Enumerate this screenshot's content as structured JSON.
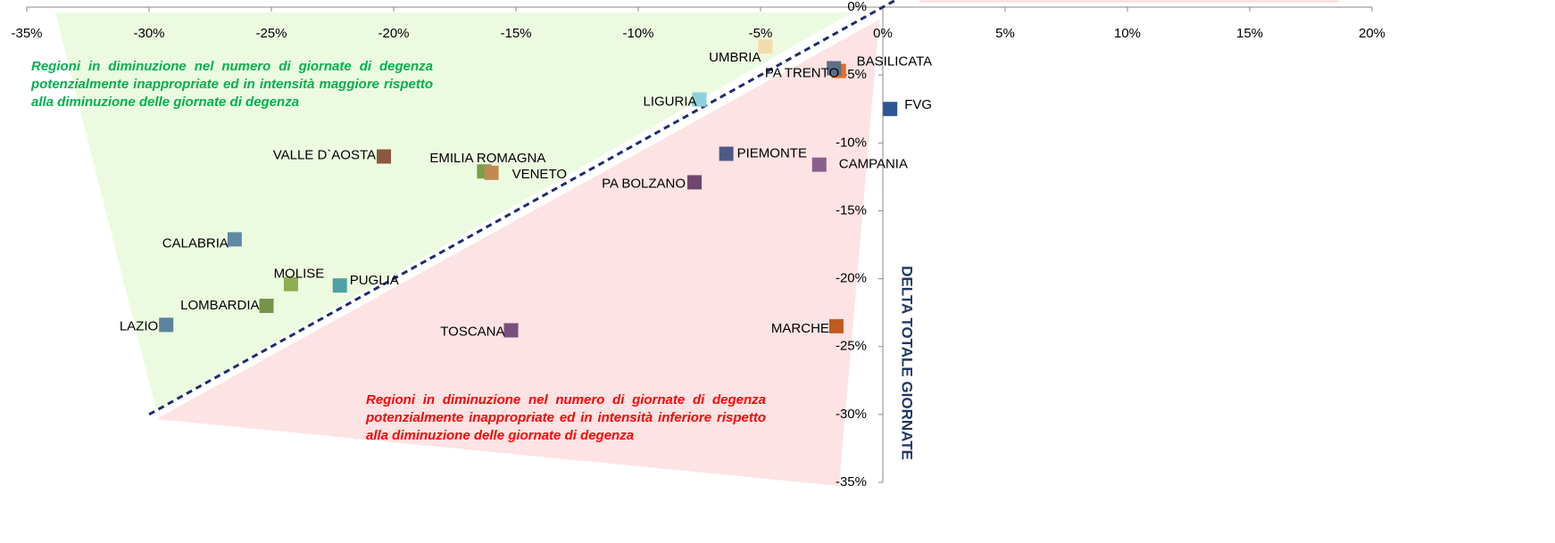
{
  "chart_data": {
    "type": "scatter",
    "ylabel": "DELTA TOTALE GIORNATE",
    "annotations": [
      "Regioni in diminuzione nel numero di giornate di degenza potenzialmente inappropriate ed in intensità maggiore rispetto alla diminuzione delle giornate di degenza",
      "Regioni in diminuzione nel numero di giornate di degenza potenzialmente inappropriate ed in intensità inferiore rispetto alla diminuzione delle giornate di degenza"
    ],
    "xlim": [
      -35,
      20
    ],
    "ylim": [
      -35,
      0
    ],
    "xticks": [
      {
        "value": -35,
        "label": "-35%"
      },
      {
        "value": -30,
        "label": "-30%"
      },
      {
        "value": -25,
        "label": "-25%"
      },
      {
        "value": -20,
        "label": "-20%"
      },
      {
        "value": -15,
        "label": "-15%"
      },
      {
        "value": -10,
        "label": "-10%"
      },
      {
        "value": -5,
        "label": "-5%"
      },
      {
        "value": 0,
        "label": "0%"
      },
      {
        "value": 5,
        "label": "5%"
      },
      {
        "value": 10,
        "label": "10%"
      },
      {
        "value": 15,
        "label": "15%"
      },
      {
        "value": 20,
        "label": "20%"
      }
    ],
    "yticks": [
      {
        "value": 0,
        "label": "0%"
      },
      {
        "value": -5,
        "label": "-5%"
      },
      {
        "value": -10,
        "label": "-10%"
      },
      {
        "value": -15,
        "label": "-15%"
      },
      {
        "value": -20,
        "label": "-20%"
      },
      {
        "value": -25,
        "label": "-25%"
      },
      {
        "value": -30,
        "label": "-30%"
      },
      {
        "value": -35,
        "label": "-35%"
      }
    ],
    "reference_line": {
      "x": [
        -30,
        1
      ],
      "y": [
        -30,
        1
      ]
    },
    "points": [
      {
        "label": "UMBRIA",
        "x": -4.8,
        "y": -2.9,
        "color": "#f2dcae"
      },
      {
        "label": "BASILICATA",
        "x": -1.8,
        "y": -4.7,
        "color": "#e46c2a"
      },
      {
        "label": "PA TRENTO",
        "x": -2.0,
        "y": -4.5,
        "color": "#5b6f86"
      },
      {
        "label": "FVG",
        "x": 0.3,
        "y": -7.5,
        "color": "#2e5597"
      },
      {
        "label": "LIGURIA",
        "x": -7.5,
        "y": -6.8,
        "color": "#8fd0dc"
      },
      {
        "label": "PIEMONTE",
        "x": -6.4,
        "y": -10.8,
        "color": "#4e5a86"
      },
      {
        "label": "CAMPANIA",
        "x": -2.6,
        "y": -11.6,
        "color": "#8a5f8d"
      },
      {
        "label": "PA BOLZANO",
        "x": -7.7,
        "y": -12.9,
        "color": "#70456e"
      },
      {
        "label": "VALLE D`AOSTA",
        "x": -20.4,
        "y": -11.0,
        "color": "#8c5642"
      },
      {
        "label": "EMILIA ROMAGNA",
        "x": -16.3,
        "y": -12.1,
        "color": "#7a9e4a"
      },
      {
        "label": "VENETO",
        "x": -16.0,
        "y": -12.2,
        "color": "#c08a50"
      },
      {
        "label": "CALABRIA",
        "x": -26.5,
        "y": -17.1,
        "color": "#5f8aa3"
      },
      {
        "label": "MOLISE",
        "x": -24.2,
        "y": -20.4,
        "color": "#8fae4f"
      },
      {
        "label": "PUGLIA",
        "x": -22.2,
        "y": -20.5,
        "color": "#4fa0a4"
      },
      {
        "label": "LOMBARDIA",
        "x": -25.2,
        "y": -22.0,
        "color": "#76934a"
      },
      {
        "label": "LAZIO",
        "x": -29.3,
        "y": -23.4,
        "color": "#5b83a0"
      },
      {
        "label": "TOSCANA",
        "x": -15.2,
        "y": -23.8,
        "color": "#7a4f7e"
      },
      {
        "label": "MARCHE",
        "x": -1.9,
        "y": -23.5,
        "color": "#c25a1f"
      }
    ]
  }
}
